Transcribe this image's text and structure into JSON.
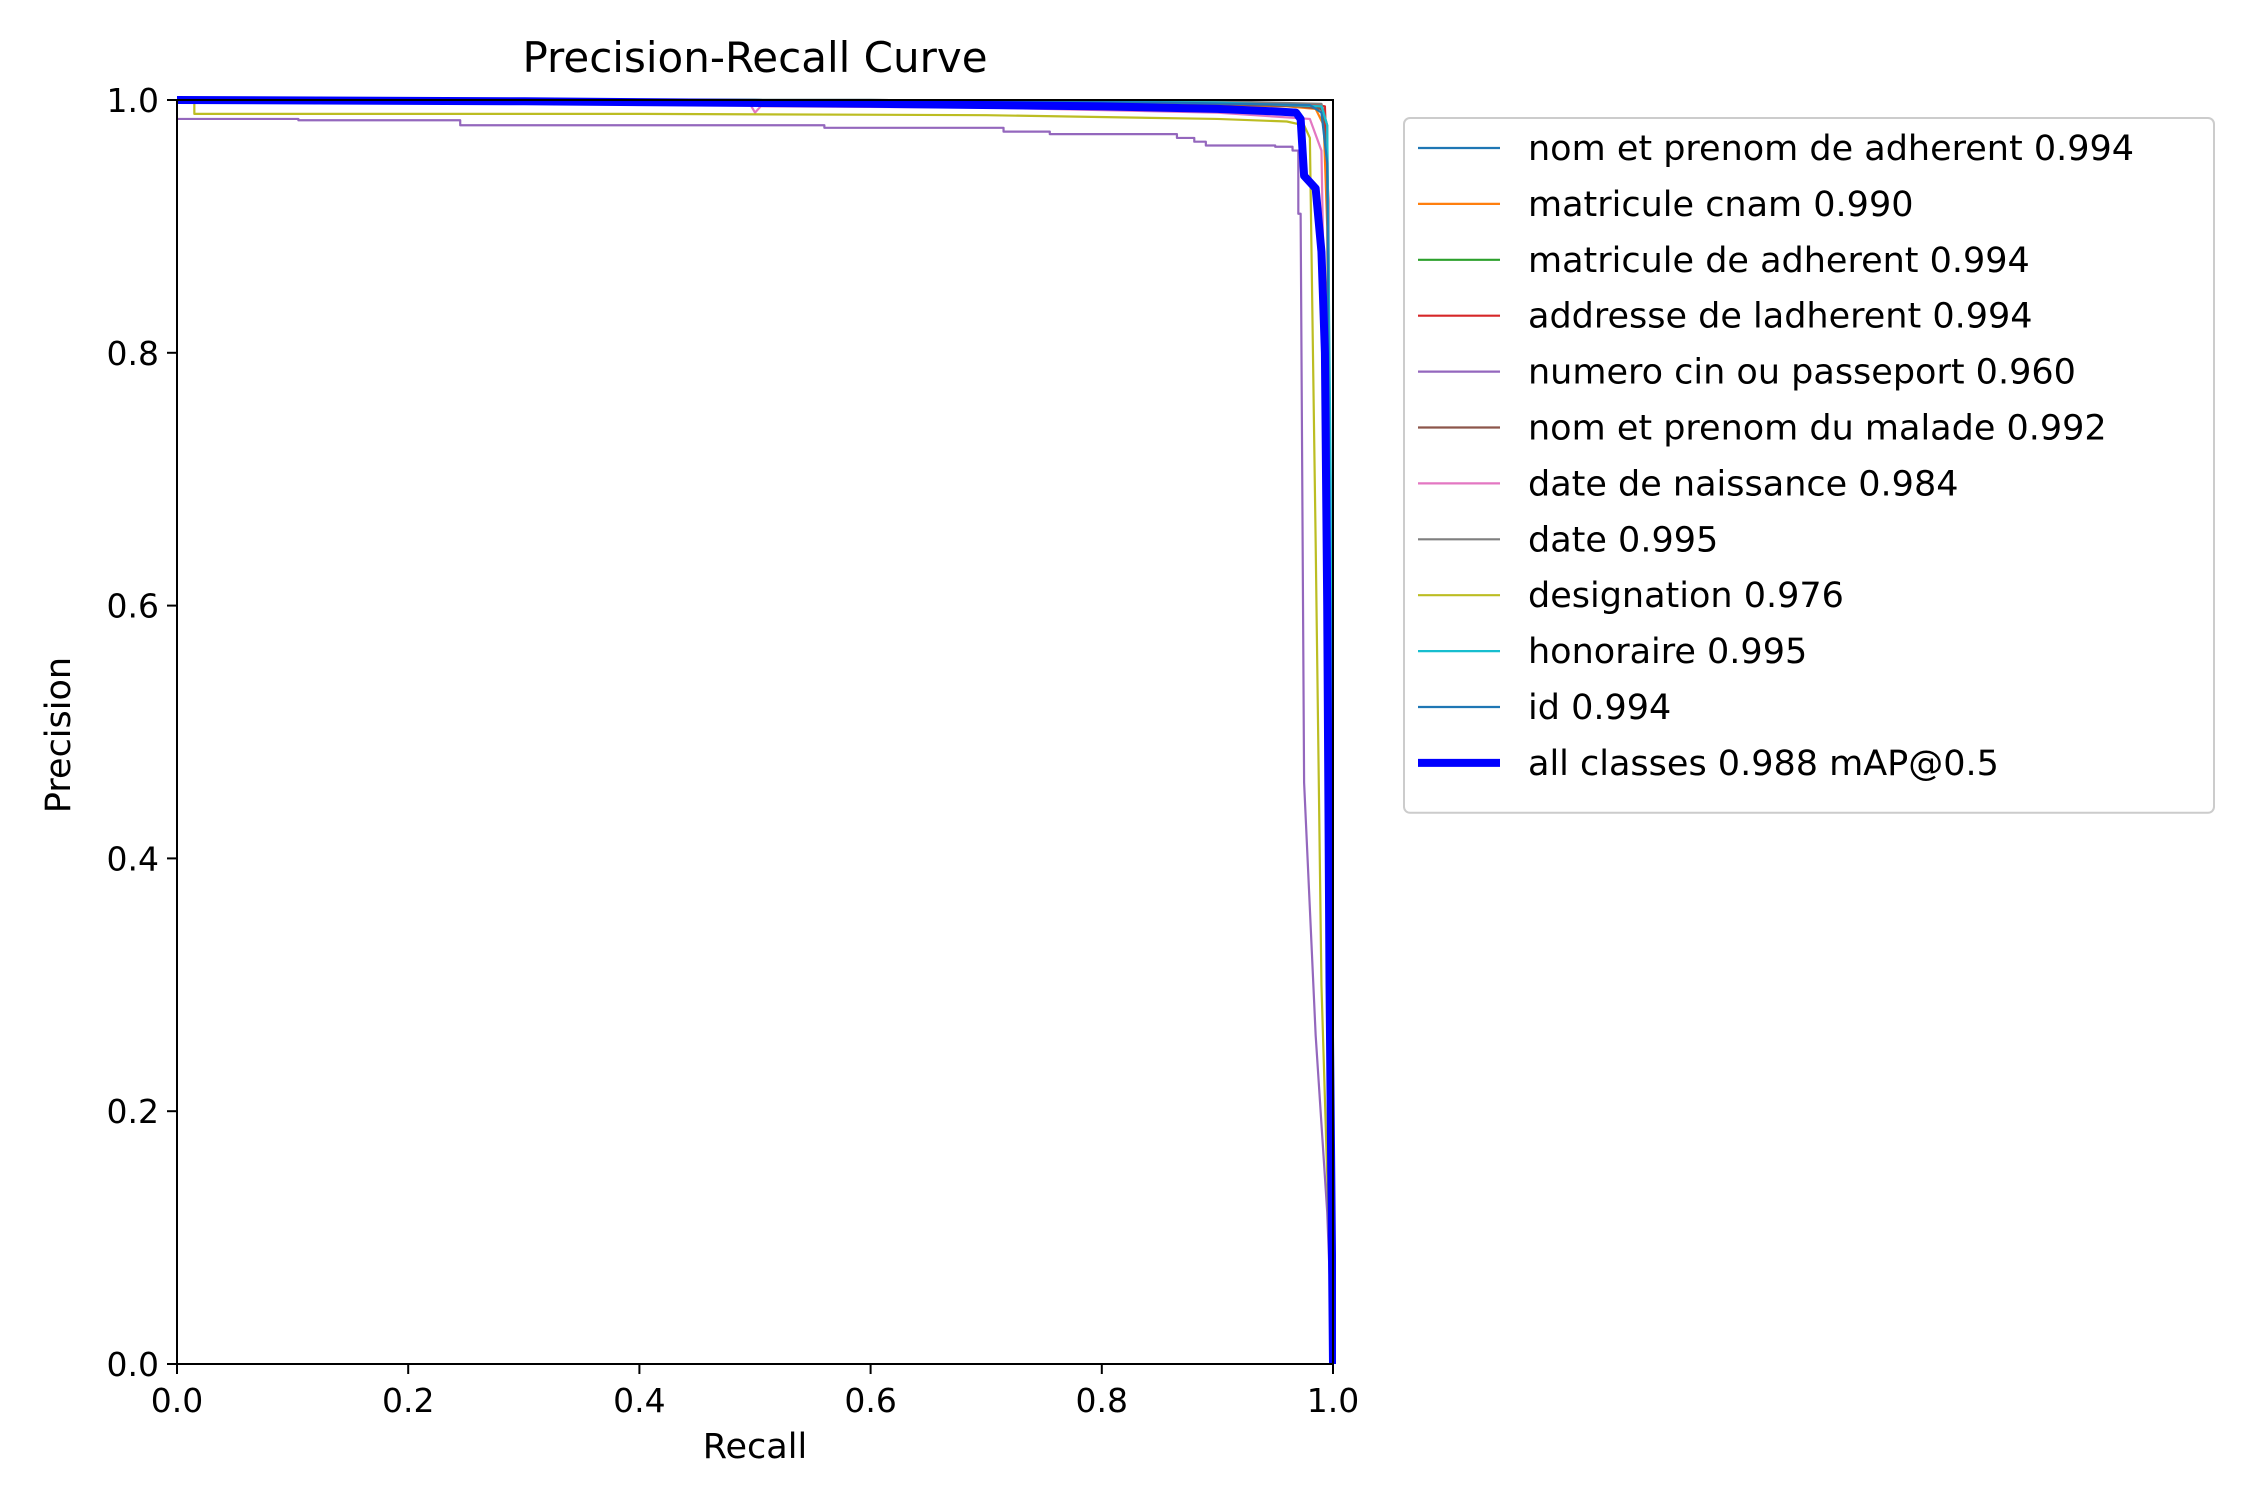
{
  "chart_data": {
    "type": "line",
    "title": "Precision-Recall Curve",
    "xlabel": "Recall",
    "ylabel": "Precision",
    "xlim": [
      0,
      1
    ],
    "ylim": [
      0,
      1
    ],
    "xticks": [
      0.0,
      0.2,
      0.4,
      0.6,
      0.8,
      1.0
    ],
    "yticks": [
      0.0,
      0.2,
      0.4,
      0.6,
      0.8,
      1.0
    ],
    "tick_labels_x": [
      "0.0",
      "0.2",
      "0.4",
      "0.6",
      "0.8",
      "1.0"
    ],
    "tick_labels_y": [
      "0.0",
      "0.2",
      "0.4",
      "0.6",
      "0.8",
      "1.0"
    ],
    "grid": false,
    "legend_position": "outside-right-top",
    "series": [
      {
        "name": "nom et prenom de adherent 0.994",
        "color": "#1f77b4",
        "x": [
          0,
          0.5,
          0.9,
          0.985,
          0.993,
          0.996,
          0.998,
          1.0
        ],
        "y": [
          1.0,
          1.0,
          0.998,
          0.996,
          0.99,
          0.9,
          0.5,
          0.0
        ]
      },
      {
        "name": "matricule cnam 0.990",
        "color": "#ff7f0e",
        "x": [
          0,
          0.4,
          0.8,
          0.96,
          0.985,
          0.992,
          0.995,
          0.998,
          1.0
        ],
        "y": [
          1.0,
          1.0,
          0.997,
          0.995,
          0.993,
          0.98,
          0.9,
          0.5,
          0.0
        ]
      },
      {
        "name": "matricule de adherent 0.994",
        "color": "#2ca02c",
        "x": [
          0,
          0.5,
          0.9,
          0.99,
          0.995,
          0.998,
          1.0
        ],
        "y": [
          1.0,
          1.0,
          0.998,
          0.995,
          0.97,
          0.6,
          0.0
        ]
      },
      {
        "name": "addresse de ladherent 0.994",
        "color": "#d62728",
        "x": [
          0,
          0.6,
          0.9,
          0.985,
          0.993,
          0.996,
          0.998,
          1.0
        ],
        "y": [
          1.0,
          1.0,
          0.998,
          0.996,
          0.995,
          0.92,
          0.5,
          0.0
        ]
      },
      {
        "name": "numero cin ou passeport 0.960",
        "color": "#9467bd",
        "x": [
          0,
          0.105,
          0.105,
          0.245,
          0.245,
          0.56,
          0.56,
          0.715,
          0.715,
          0.755,
          0.755,
          0.865,
          0.865,
          0.88,
          0.88,
          0.89,
          0.89,
          0.95,
          0.95,
          0.965,
          0.965,
          0.97,
          0.97,
          0.972,
          0.975,
          0.985,
          0.995,
          1.0
        ],
        "y": [
          0.985,
          0.985,
          0.984,
          0.984,
          0.98,
          0.98,
          0.978,
          0.978,
          0.975,
          0.975,
          0.973,
          0.973,
          0.97,
          0.97,
          0.967,
          0.967,
          0.964,
          0.964,
          0.963,
          0.963,
          0.96,
          0.96,
          0.91,
          0.91,
          0.46,
          0.26,
          0.12,
          0.0
        ]
      },
      {
        "name": "nom et prenom du malade 0.992",
        "color": "#8c564b",
        "x": [
          0,
          0.5,
          0.85,
          0.97,
          0.99,
          0.995,
          0.998,
          1.0
        ],
        "y": [
          1.0,
          1.0,
          0.998,
          0.995,
          0.993,
          0.96,
          0.5,
          0.0
        ]
      },
      {
        "name": "date de naissance 0.984",
        "color": "#e377c2",
        "x": [
          0,
          0.4,
          0.495,
          0.5,
          0.505,
          0.7,
          0.9,
          0.98,
          0.99,
          0.995,
          1.0
        ],
        "y": [
          1.0,
          1.0,
          0.998,
          0.99,
          0.995,
          0.994,
          0.99,
          0.985,
          0.96,
          0.7,
          0.0
        ]
      },
      {
        "name": "date 0.995",
        "color": "#7f7f7f",
        "x": [
          0,
          0.6,
          0.9,
          0.99,
          0.995,
          0.998,
          1.0
        ],
        "y": [
          1.0,
          1.0,
          0.999,
          0.997,
          0.98,
          0.6,
          0.0
        ]
      },
      {
        "name": "designation 0.976",
        "color": "#bcbd22",
        "x": [
          0,
          0.015,
          0.015,
          0.4,
          0.7,
          0.9,
          0.96,
          0.975,
          0.98,
          0.985,
          0.99,
          1.0
        ],
        "y": [
          1.0,
          1.0,
          0.989,
          0.989,
          0.988,
          0.985,
          0.983,
          0.98,
          0.97,
          0.65,
          0.3,
          0.0
        ]
      },
      {
        "name": "honoraire 0.995",
        "color": "#17becf",
        "x": [
          0,
          0.6,
          0.9,
          0.99,
          0.995,
          0.998,
          1.0
        ],
        "y": [
          1.0,
          1.0,
          0.998,
          0.995,
          0.98,
          0.7,
          0.0
        ]
      },
      {
        "name": "id 0.994",
        "color": "#1f77b4",
        "x": [
          0,
          0.5,
          0.85,
          0.98,
          0.99,
          0.995,
          0.998,
          1.0
        ],
        "y": [
          1.0,
          1.0,
          0.998,
          0.996,
          0.99,
          0.95,
          0.5,
          0.0
        ]
      },
      {
        "name": "all classes 0.988 mAP@0.5",
        "color": "#0000ff",
        "bold": true,
        "x": [
          0,
          0.3,
          0.6,
          0.8,
          0.9,
          0.95,
          0.968,
          0.972,
          0.975,
          0.985,
          0.99,
          0.993,
          0.995,
          0.997,
          0.999,
          1.0
        ],
        "y": [
          1.0,
          0.999,
          0.997,
          0.995,
          0.993,
          0.991,
          0.99,
          0.985,
          0.94,
          0.93,
          0.88,
          0.8,
          0.6,
          0.3,
          0.1,
          0.0
        ]
      }
    ]
  }
}
